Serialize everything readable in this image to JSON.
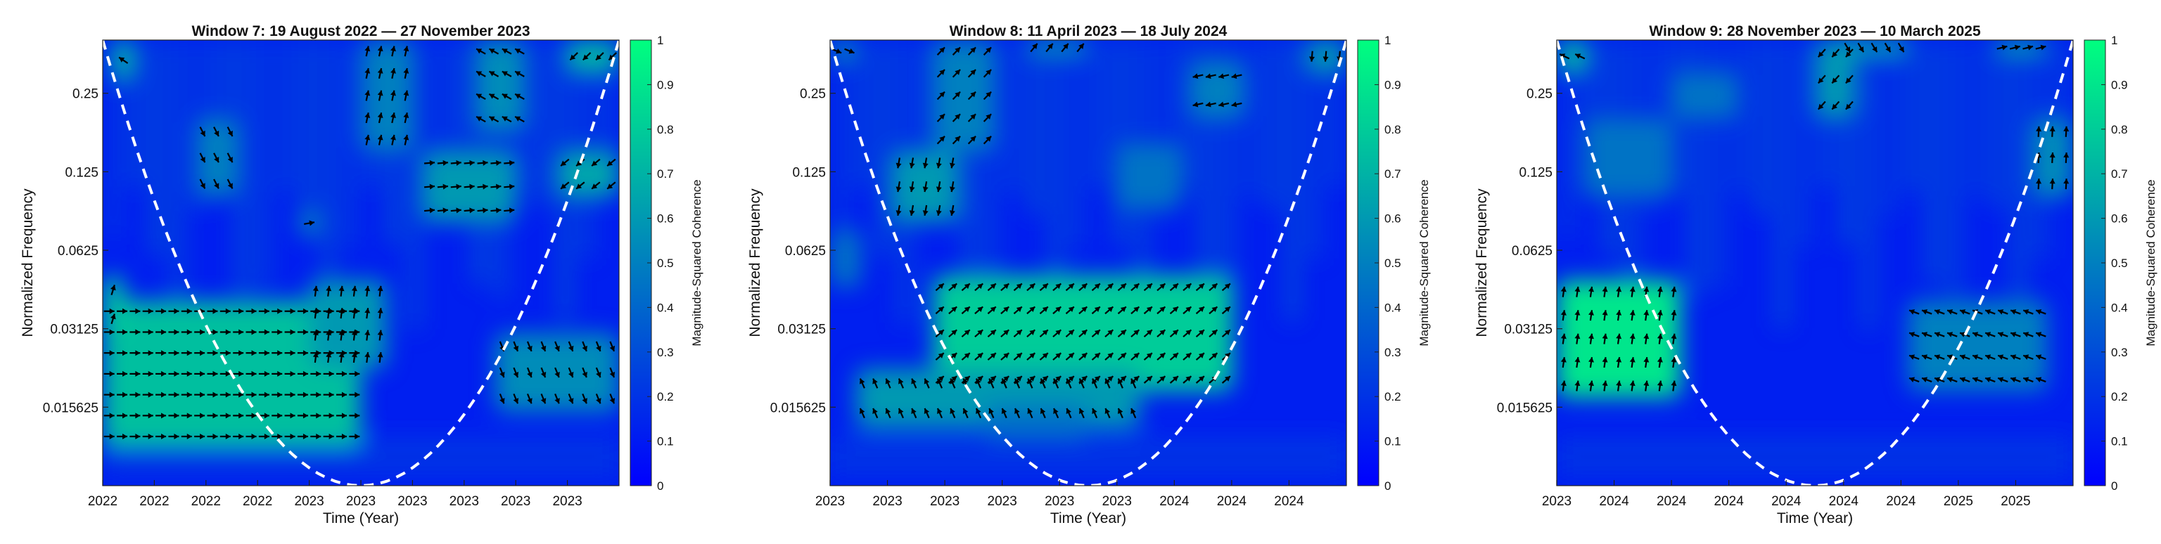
{
  "figure": {
    "background": "#ffffff",
    "colormap": [
      "#0000ff",
      "#00ff7f"
    ],
    "coi_color": "#ffffff"
  },
  "chart_data": [
    {
      "type": "heatmap",
      "title": "Window 7: 19 August 2022 — 27 November 2023",
      "xlabel": "Time (Year)",
      "ylabel": "Normalized Frequency",
      "colorbar_label": "Magnitude-Squared Coherence",
      "x_tick_labels": [
        "2022",
        "2022",
        "2022",
        "2022",
        "2023",
        "2023",
        "2023",
        "2023",
        "2023",
        "2023"
      ],
      "y_tick_labels": [
        "0.25",
        "0.125",
        "0.0625",
        "0.03125",
        "0.015625"
      ],
      "y_tick_values": [
        0.25,
        0.125,
        0.0625,
        0.03125,
        0.015625
      ],
      "ylim": [
        0.0078125,
        0.4
      ],
      "clim": [
        0,
        1
      ],
      "colorbar_ticks": [
        "0",
        "0.1",
        "0.2",
        "0.3",
        "0.4",
        "0.5",
        "0.6",
        "0.7",
        "0.8",
        "0.9",
        "1"
      ],
      "cone_of_influence": "dashed white",
      "regions": [
        {
          "t": [
            0.0,
            0.5
          ],
          "f": [
            0.011,
            0.04
          ],
          "coherence": 0.75
        },
        {
          "t": [
            0.0,
            0.04
          ],
          "f": [
            0.03,
            0.05
          ],
          "coherence": 0.8
        },
        {
          "t": [
            0.02,
            0.06
          ],
          "f": [
            0.28,
            0.4
          ],
          "coherence": 0.7
        },
        {
          "t": [
            0.88,
            1.0
          ],
          "f": [
            0.1,
            0.15
          ],
          "coherence": 0.65
        },
        {
          "t": [
            0.76,
            1.0
          ],
          "f": [
            0.015,
            0.03
          ],
          "coherence": 0.55
        },
        {
          "t": [
            0.62,
            0.8
          ],
          "f": [
            0.08,
            0.15
          ],
          "coherence": 0.6
        },
        {
          "t": [
            0.5,
            0.6
          ],
          "f": [
            0.15,
            0.4
          ],
          "coherence": 0.5
        },
        {
          "t": [
            0.72,
            0.82
          ],
          "f": [
            0.18,
            0.4
          ],
          "coherence": 0.55
        },
        {
          "t": [
            0.9,
            1.0
          ],
          "f": [
            0.3,
            0.4
          ],
          "coherence": 0.7
        },
        {
          "t": [
            0.18,
            0.26
          ],
          "f": [
            0.1,
            0.2
          ],
          "coherence": 0.5
        },
        {
          "t": [
            0.38,
            0.42
          ],
          "f": [
            0.07,
            0.09
          ],
          "coherence": 0.5
        },
        {
          "t": [
            0.4,
            0.55
          ],
          "f": [
            0.022,
            0.048
          ],
          "coherence": 0.6
        }
      ]
    },
    {
      "type": "heatmap",
      "title": "Window 8: 11 April 2023 — 18 July 2024",
      "xlabel": "Time (Year)",
      "ylabel": "Normalized Frequency",
      "colorbar_label": "Magnitude-Squared Coherence",
      "x_tick_labels": [
        "2023",
        "2023",
        "2023",
        "2023",
        "2023",
        "2023",
        "2024",
        "2024",
        "2024"
      ],
      "y_tick_labels": [
        "0.25",
        "0.125",
        "0.0625",
        "0.03125",
        "0.015625"
      ],
      "y_tick_values": [
        0.25,
        0.125,
        0.0625,
        0.03125,
        0.015625
      ],
      "ylim": [
        0.0078125,
        0.4
      ],
      "clim": [
        0,
        1
      ],
      "colorbar_ticks": [
        "0",
        "0.1",
        "0.2",
        "0.3",
        "0.4",
        "0.5",
        "0.6",
        "0.7",
        "0.8",
        "0.9",
        "1"
      ],
      "cone_of_influence": "dashed white",
      "regions": [
        {
          "t": [
            0.2,
            0.78
          ],
          "f": [
            0.018,
            0.05
          ],
          "coherence": 0.8
        },
        {
          "t": [
            0.05,
            0.6
          ],
          "f": [
            0.013,
            0.022
          ],
          "coherence": 0.6
        },
        {
          "t": [
            0.3,
            0.5
          ],
          "f": [
            0.012,
            0.016
          ],
          "coherence": 0.45
        },
        {
          "t": [
            0.12,
            0.25
          ],
          "f": [
            0.08,
            0.15
          ],
          "coherence": 0.6
        },
        {
          "t": [
            0.0,
            0.06
          ],
          "f": [
            0.045,
            0.075
          ],
          "coherence": 0.45
        },
        {
          "t": [
            0.2,
            0.32
          ],
          "f": [
            0.15,
            0.4
          ],
          "coherence": 0.5
        },
        {
          "t": [
            0.55,
            0.68
          ],
          "f": [
            0.09,
            0.16
          ],
          "coherence": 0.45
        },
        {
          "t": [
            0.7,
            0.8
          ],
          "f": [
            0.2,
            0.33
          ],
          "coherence": 0.5
        },
        {
          "t": [
            0.92,
            1.0
          ],
          "f": [
            0.3,
            0.4
          ],
          "coherence": 0.6
        },
        {
          "t": [
            0.0,
            0.05
          ],
          "f": [
            0.33,
            0.4
          ],
          "coherence": 0.55
        },
        {
          "t": [
            0.38,
            0.5
          ],
          "f": [
            0.35,
            0.4
          ],
          "coherence": 0.6
        }
      ]
    },
    {
      "type": "heatmap",
      "title": "Window 9: 28 November 2023 — 10 March 2025",
      "xlabel": "Time (Year)",
      "ylabel": "Normalized Frequency",
      "colorbar_label": "Magnitude-Squared Coherence",
      "x_tick_labels": [
        "2023",
        "2024",
        "2024",
        "2024",
        "2024",
        "2024",
        "2024",
        "2025",
        "2025"
      ],
      "y_tick_labels": [
        "0.25",
        "0.125",
        "0.0625",
        "0.03125",
        "0.015625"
      ],
      "y_tick_values": [
        0.25,
        0.125,
        0.0625,
        0.03125,
        0.015625
      ],
      "ylim": [
        0.0078125,
        0.4
      ],
      "clim": [
        0,
        1
      ],
      "colorbar_ticks": [
        "0",
        "0.1",
        "0.2",
        "0.3",
        "0.4",
        "0.5",
        "0.6",
        "0.7",
        "0.8",
        "0.9",
        "1"
      ],
      "cone_of_influence": "dashed white",
      "regions": [
        {
          "t": [
            0.0,
            0.24
          ],
          "f": [
            0.017,
            0.048
          ],
          "coherence": 0.9
        },
        {
          "t": [
            0.0,
            0.06
          ],
          "f": [
            0.3,
            0.4
          ],
          "coherence": 0.7
        },
        {
          "t": [
            0.5,
            0.58
          ],
          "f": [
            0.2,
            0.4
          ],
          "coherence": 0.6
        },
        {
          "t": [
            0.55,
            0.68
          ],
          "f": [
            0.35,
            0.4
          ],
          "coherence": 0.7
        },
        {
          "t": [
            0.85,
            0.95
          ],
          "f": [
            0.35,
            0.4
          ],
          "coherence": 0.65
        },
        {
          "t": [
            0.92,
            1.0
          ],
          "f": [
            0.1,
            0.2
          ],
          "coherence": 0.55
        },
        {
          "t": [
            0.68,
            0.95
          ],
          "f": [
            0.018,
            0.04
          ],
          "coherence": 0.5
        },
        {
          "t": [
            0.05,
            0.22
          ],
          "f": [
            0.1,
            0.2
          ],
          "coherence": 0.45
        },
        {
          "t": [
            0.22,
            0.35
          ],
          "f": [
            0.2,
            0.3
          ],
          "coherence": 0.45
        }
      ]
    }
  ]
}
